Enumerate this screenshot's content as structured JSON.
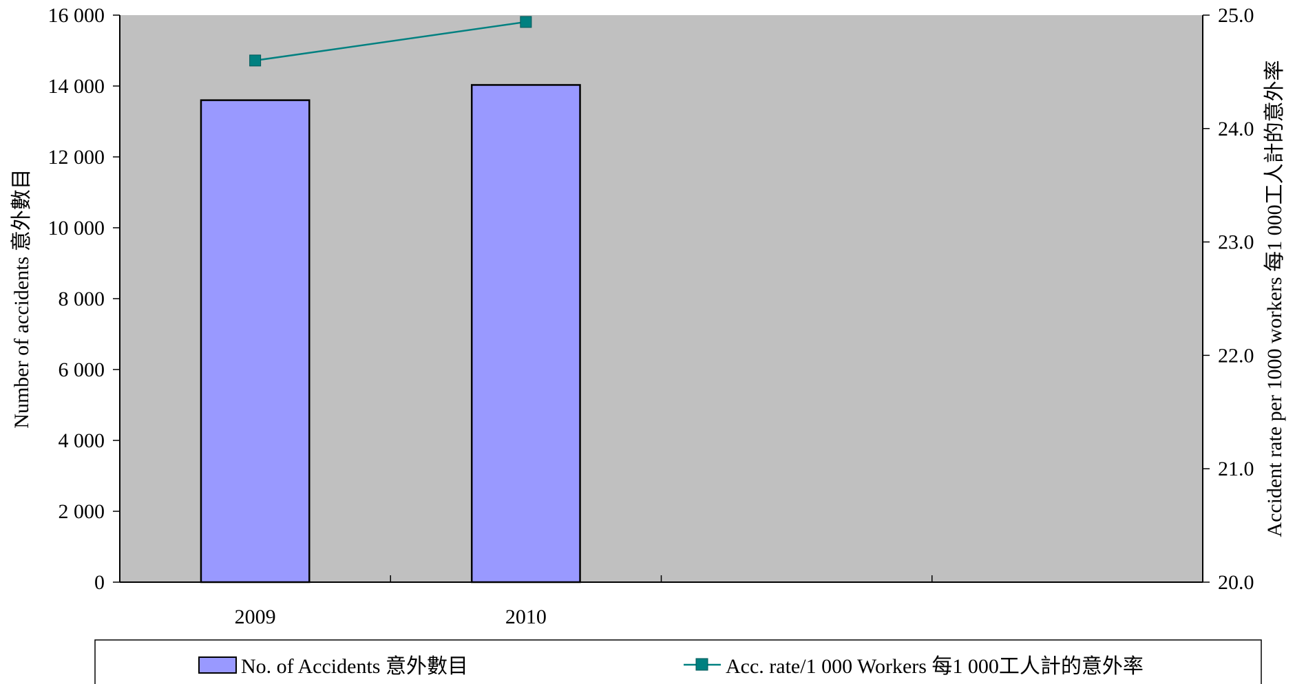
{
  "chart_data": {
    "type": "bar",
    "categories": [
      "2009",
      "2010",
      "",
      ""
    ],
    "series": [
      {
        "name": "No. of Accidents 意外數目",
        "chart_type": "bar",
        "axis": "left",
        "values": [
          13600,
          14030,
          null,
          null
        ],
        "color": "#9999ff"
      },
      {
        "name": "Acc. rate/1 000 Workers 每1 000工人計的意外率",
        "chart_type": "line",
        "axis": "right",
        "values": [
          24.6,
          24.94,
          null,
          null
        ],
        "color": "#008080"
      }
    ],
    "ylabel": "Number of accidents 意外數目",
    "y2label": "Accident rate per 1000 workers 每1 000工人計的意外率",
    "ylim": [
      0,
      16000
    ],
    "y2lim": [
      20.0,
      25.0
    ],
    "yticks": [
      "0",
      "2 000",
      "4 000",
      "6 000",
      "8 000",
      "10 000",
      "12 000",
      "14 000",
      "16 000"
    ],
    "y2ticks": [
      "20.0",
      "21.0",
      "22.0",
      "23.0",
      "24.0",
      "25.0"
    ],
    "plot_background": "#c0c0c0",
    "legend_position": "bottom",
    "grid": false
  }
}
